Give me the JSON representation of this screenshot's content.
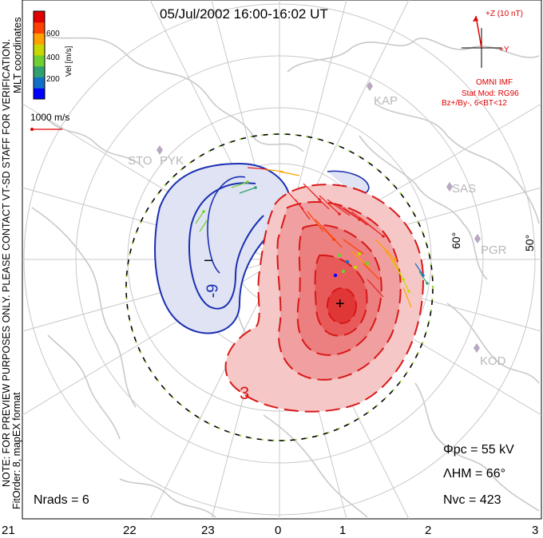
{
  "title": "05/Jul/2002 16:00-16:02 UT",
  "colorbar": {
    "unit_label": "Vel [m/s]",
    "ticks": [
      "600",
      "400",
      "200"
    ],
    "colors": [
      "#0000ff",
      "#1070c8",
      "#30a070",
      "#70d030",
      "#c8d800",
      "#ffa000",
      "#ff4000",
      "#e00000"
    ]
  },
  "coords_label": "MLT coordinates",
  "scale_label": "1000 m/s",
  "watermark": "NOTE: FOR PREVIEW PURPOSES ONLY. PLEASE CONTACT VT-SD STAFF FOR VERIFICATION.",
  "fit_info": "FitOrder: 8, mapEX format",
  "imf": {
    "z_label": "+Z (10 nT)",
    "y_label": "+Y",
    "source": "OMNI IMF",
    "model": "Stat Mod: RG96",
    "condition": "Bz+/By-, 6<BT<12"
  },
  "stations": [
    "KAP",
    "SAS",
    "STO",
    "PYK",
    "PGR",
    "KOD"
  ],
  "latitude_labels": [
    "60°",
    "50°"
  ],
  "hour_labels": [
    "21",
    "22",
    "23",
    "0",
    "1",
    "2",
    "3"
  ],
  "contour_labels": {
    "neg_sign": "−",
    "neg_value": "-9",
    "pos_value": "3",
    "pos_sign": "+"
  },
  "stats": {
    "phi_pc": "Φpc = 55 kV",
    "lambda_hm": "ΛHM = 66°",
    "n_vc": "Nvc = 423",
    "n_rads": "Nrads = 6"
  },
  "colors": {
    "negative_fill": "#dfe3f3",
    "negative_line": "#1a2fb0",
    "positive_fill": "#f07070",
    "positive_line": "#d81818",
    "map_line": "#c9c9c9",
    "imf_red": "#e00000"
  }
}
